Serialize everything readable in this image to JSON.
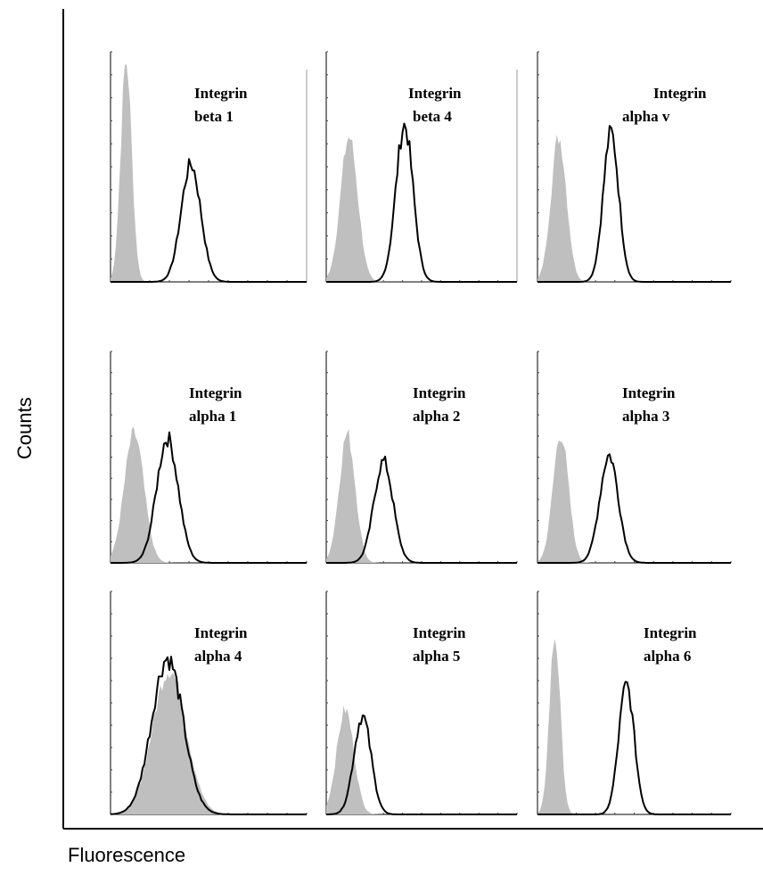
{
  "figure": {
    "ylabel": "Counts",
    "xlabel": "Fluorescence"
  },
  "colors": {
    "isotype_fill": "#bfbfbf",
    "stain_line": "#000000",
    "axis": "#000000"
  },
  "chart_data": [
    {
      "type": "area",
      "title_lines": [
        "Integrin",
        "beta 1"
      ],
      "x_range": [
        0,
        1
      ],
      "y_range": [
        0,
        1
      ],
      "series": [
        {
          "kind": "isotype",
          "mode": "filled",
          "peak": 0.08,
          "width": 0.028,
          "height": 0.96
        },
        {
          "kind": "stain",
          "mode": "line",
          "peak": 0.41,
          "width": 0.05,
          "height": 0.51
        }
      ]
    },
    {
      "type": "area",
      "title_lines": [
        "Integrin",
        "beta 4"
      ],
      "x_range": [
        0,
        1
      ],
      "y_range": [
        0,
        1
      ],
      "series": [
        {
          "kind": "isotype",
          "mode": "filled",
          "peak": 0.12,
          "width": 0.045,
          "height": 0.63
        },
        {
          "kind": "stain",
          "mode": "line",
          "peak": 0.41,
          "width": 0.045,
          "height": 0.68
        }
      ]
    },
    {
      "type": "area",
      "title_lines": [
        "Integrin",
        "alpha v"
      ],
      "x_range": [
        0,
        1
      ],
      "y_range": [
        0,
        1
      ],
      "series": [
        {
          "kind": "isotype",
          "mode": "filled",
          "peak": 0.11,
          "width": 0.04,
          "height": 0.63
        },
        {
          "kind": "stain",
          "mode": "line",
          "peak": 0.38,
          "width": 0.04,
          "height": 0.65
        }
      ]
    },
    {
      "type": "area",
      "title_lines": [
        "Integrin",
        "alpha 1"
      ],
      "x_range": [
        0,
        1
      ],
      "y_range": [
        0,
        1
      ],
      "series": [
        {
          "kind": "isotype",
          "mode": "filled",
          "peak": 0.12,
          "width": 0.05,
          "height": 0.61
        },
        {
          "kind": "stain",
          "mode": "line",
          "peak": 0.29,
          "width": 0.055,
          "height": 0.59
        }
      ]
    },
    {
      "type": "area",
      "title_lines": [
        "Integrin",
        "alpha 2"
      ],
      "x_range": [
        0,
        1
      ],
      "y_range": [
        0,
        1
      ],
      "series": [
        {
          "kind": "isotype",
          "mode": "filled",
          "peak": 0.11,
          "width": 0.042,
          "height": 0.61
        },
        {
          "kind": "stain",
          "mode": "line",
          "peak": 0.3,
          "width": 0.05,
          "height": 0.48
        }
      ]
    },
    {
      "type": "area",
      "title_lines": [
        "Integrin",
        "alpha 3"
      ],
      "x_range": [
        0,
        1
      ],
      "y_range": [
        0,
        1
      ],
      "series": [
        {
          "kind": "isotype",
          "mode": "filled",
          "peak": 0.12,
          "width": 0.04,
          "height": 0.61
        },
        {
          "kind": "stain",
          "mode": "line",
          "peak": 0.37,
          "width": 0.048,
          "height": 0.51
        }
      ]
    },
    {
      "type": "area",
      "title_lines": [
        "Integrin",
        "alpha 4"
      ],
      "x_range": [
        0,
        1
      ],
      "y_range": [
        0,
        1
      ],
      "series": [
        {
          "kind": "isotype",
          "mode": "filled",
          "peak": 0.3,
          "width": 0.085,
          "height": 0.65
        },
        {
          "kind": "stain",
          "mode": "line",
          "peak": 0.29,
          "width": 0.08,
          "height": 0.7
        }
      ]
    },
    {
      "type": "area",
      "title_lines": [
        "Integrin",
        "alpha 5"
      ],
      "x_range": [
        0,
        1
      ],
      "y_range": [
        0,
        1
      ],
      "series": [
        {
          "kind": "isotype",
          "mode": "filled",
          "peak": 0.1,
          "width": 0.045,
          "height": 0.47
        },
        {
          "kind": "stain",
          "mode": "line",
          "peak": 0.19,
          "width": 0.045,
          "height": 0.44
        }
      ]
    },
    {
      "type": "area",
      "title_lines": [
        "Integrin",
        "alpha 6"
      ],
      "x_range": [
        0,
        1
      ],
      "y_range": [
        0,
        1
      ],
      "series": [
        {
          "kind": "isotype",
          "mode": "filled",
          "peak": 0.09,
          "width": 0.028,
          "height": 0.8
        },
        {
          "kind": "stain",
          "mode": "line",
          "peak": 0.46,
          "width": 0.04,
          "height": 0.58
        }
      ]
    }
  ]
}
